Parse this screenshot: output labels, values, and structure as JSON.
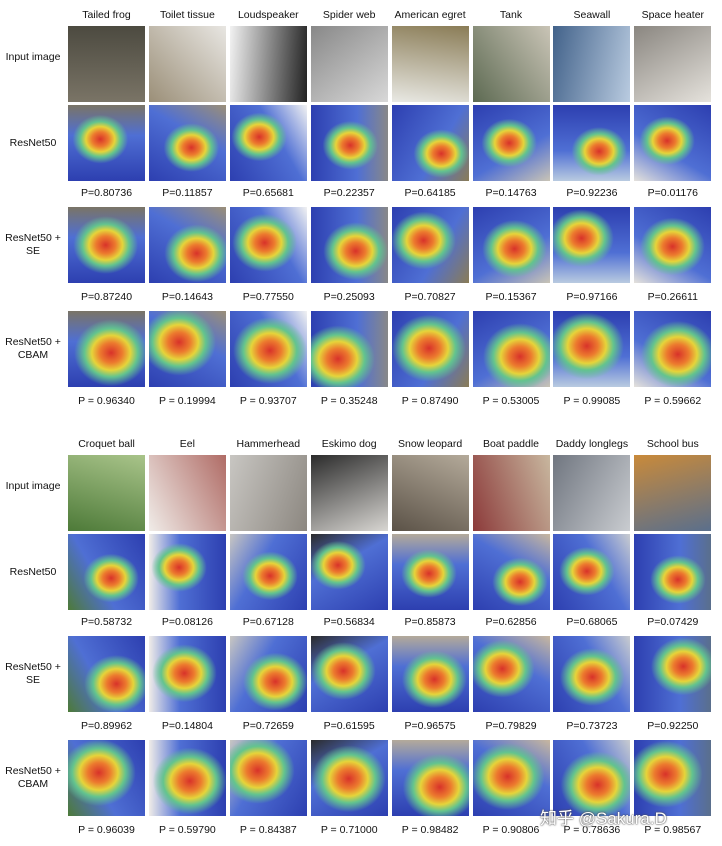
{
  "blocks": [
    {
      "columns": [
        "Tailed frog",
        "Toilet tissue",
        "Loudspeaker",
        "Spider web",
        "American egret",
        "Tank",
        "Seawall",
        "Space heater"
      ],
      "rows": [
        {
          "label": "Input image"
        },
        {
          "label": "ResNet50",
          "probabilities": [
            "P=0.80736",
            "P=0.11857",
            "P=0.65681",
            "P=0.22357",
            "P=0.64185",
            "P=0.14763",
            "P=0.92236",
            "P=0.01176"
          ]
        },
        {
          "label": "ResNet50 + SE",
          "probabilities": [
            "P=0.87240",
            "P=0.14643",
            "P=0.77550",
            "P=0.25093",
            "P=0.70827",
            "P=0.15367",
            "P=0.97166",
            "P=0.26611"
          ]
        },
        {
          "label": "ResNet50 + CBAM",
          "probabilities": [
            "P = 0.96340",
            "P = 0.19994",
            "P = 0.93707",
            "P = 0.35248",
            "P = 0.87490",
            "P = 0.53005",
            "P = 0.99085",
            "P = 0.59662"
          ]
        }
      ]
    },
    {
      "columns": [
        "Croquet ball",
        "Eel",
        "Hammerhead",
        "Eskimo dog",
        "Snow leopard",
        "Boat paddle",
        "Daddy longlegs",
        "School bus"
      ],
      "rows": [
        {
          "label": "Input image"
        },
        {
          "label": "ResNet50",
          "probabilities": [
            "P=0.58732",
            "P=0.08126",
            "P=0.67128",
            "P=0.56834",
            "P=0.85873",
            "P=0.62856",
            "P=0.68065",
            "P=0.07429"
          ]
        },
        {
          "label": "ResNet50 + SE",
          "probabilities": [
            "P=0.89962",
            "P=0.14804",
            "P=0.72659",
            "P=0.61595",
            "P=0.96575",
            "P=0.79829",
            "P=0.73723",
            "P=0.92250"
          ]
        },
        {
          "label": "ResNet50 + CBAM",
          "probabilities": [
            "P = 0.96039",
            "P = 0.59790",
            "P = 0.84387",
            "P = 0.71000",
            "P = 0.98482",
            "P = 0.90806",
            "P = 0.78636",
            "P = 0.98567"
          ]
        }
      ]
    }
  ],
  "watermark": "知乎 @Sakura.D"
}
